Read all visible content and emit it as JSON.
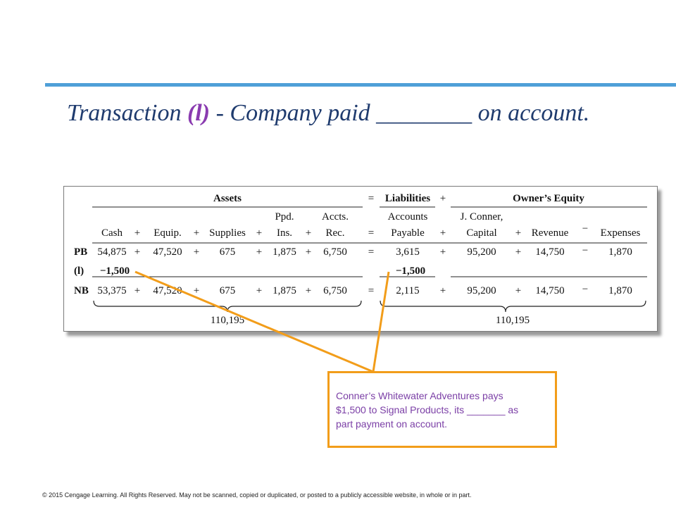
{
  "slide": {
    "title_prefix": "Transaction ",
    "title_letter": "(l)",
    "title_suffix": " - Company paid ________ on account.",
    "accent_color": "#4f9fd8",
    "title_color": "#1f3b6e",
    "letter_color": "#8a3bb0"
  },
  "equation": {
    "group_assets": "Assets",
    "group_equals": "=",
    "group_liabilities": "Liabilities",
    "group_plus": "+",
    "group_equity": "Owner’s Equity",
    "headers": {
      "cash": "Cash",
      "equip": "Equip.",
      "supplies": "Supplies",
      "ppd_1": "Ppd.",
      "ppd_2": "Ins.",
      "accts_1": "Accts.",
      "accts_2": "Rec.",
      "ap_1": "Accounts",
      "ap_2": "Payable",
      "cap_1": "J. Conner,",
      "cap_2": "Capital",
      "revenue": "Revenue",
      "expenses": "Expenses"
    },
    "ops": {
      "plus": "+",
      "eq": "=",
      "minus": "−"
    },
    "rows": {
      "pb": {
        "label": "PB",
        "cash": "54,875",
        "equip": "47,520",
        "supplies": "675",
        "ppd": "1,875",
        "accts": "6,750",
        "ap": "3,615",
        "capital": "95,200",
        "revenue": "14,750",
        "expenses": "1,870"
      },
      "l": {
        "label": "(l)",
        "cash": "−1,500",
        "ap": "−1,500"
      },
      "nb": {
        "label": "NB",
        "cash": "53,375",
        "equip": "47,520",
        "supplies": "675",
        "ppd": "1,875",
        "accts": "6,750",
        "ap": "2,115",
        "capital": "95,200",
        "revenue": "14,750",
        "expenses": "1,870"
      }
    },
    "total_assets": "110,195",
    "total_right": "110,195"
  },
  "callout": {
    "line1": "Conner’s Whitewater Adventures pays",
    "line2": "$1,500 to Signal Products, its _______ as",
    "line3": "part payment on account.",
    "border_color": "#f29d1a",
    "text_color": "#7b3fa6"
  },
  "footer": "© 2015 Cengage Learning. All Rights Reserved. May not be scanned, copied or duplicated, or posted to a publicly accessible website, in whole or in part."
}
